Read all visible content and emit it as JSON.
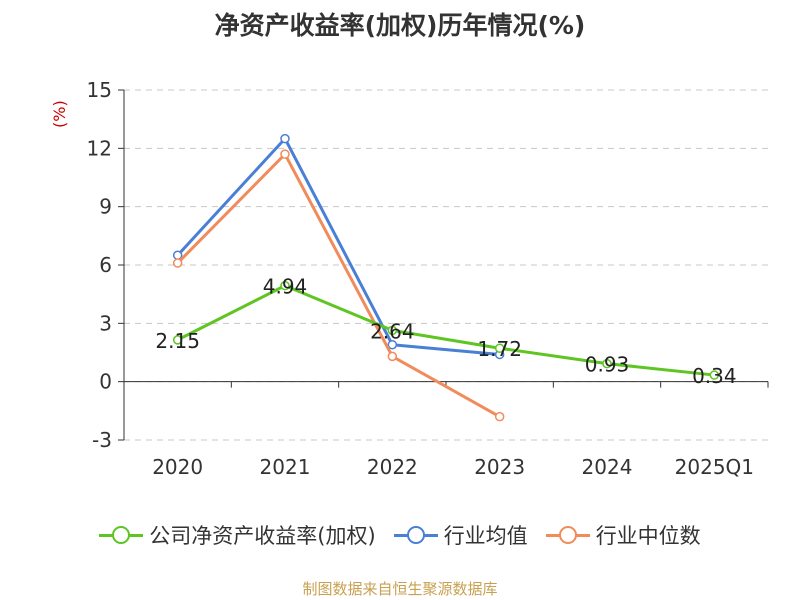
{
  "chart_data": {
    "type": "line",
    "title": "净资产收益率(加权)历年情况(%)",
    "ylabel": "(%)",
    "xlabel": "",
    "categories": [
      "2020",
      "2021",
      "2022",
      "2023",
      "2024",
      "2025Q1"
    ],
    "ylim": [
      -3,
      15
    ],
    "yticks": [
      -3,
      0,
      3,
      6,
      9,
      12,
      15
    ],
    "grid": true,
    "legend_position": "bottom",
    "series": [
      {
        "name": "公司净资产收益率(加权)",
        "color": "#5ec523",
        "values": [
          2.15,
          4.94,
          2.64,
          1.72,
          0.93,
          0.34
        ],
        "labels": [
          "2.15",
          "4.94",
          "2.64",
          "1.72",
          "0.93",
          "0.34"
        ]
      },
      {
        "name": "行业均值",
        "color": "#4a7fd6",
        "values": [
          6.5,
          12.5,
          1.9,
          1.4,
          null,
          null
        ]
      },
      {
        "name": "行业中位数",
        "color": "#f28b5b",
        "values": [
          6.1,
          11.7,
          1.3,
          -1.8,
          null,
          null
        ]
      }
    ]
  },
  "footer": "制图数据来自恒生聚源数据库"
}
